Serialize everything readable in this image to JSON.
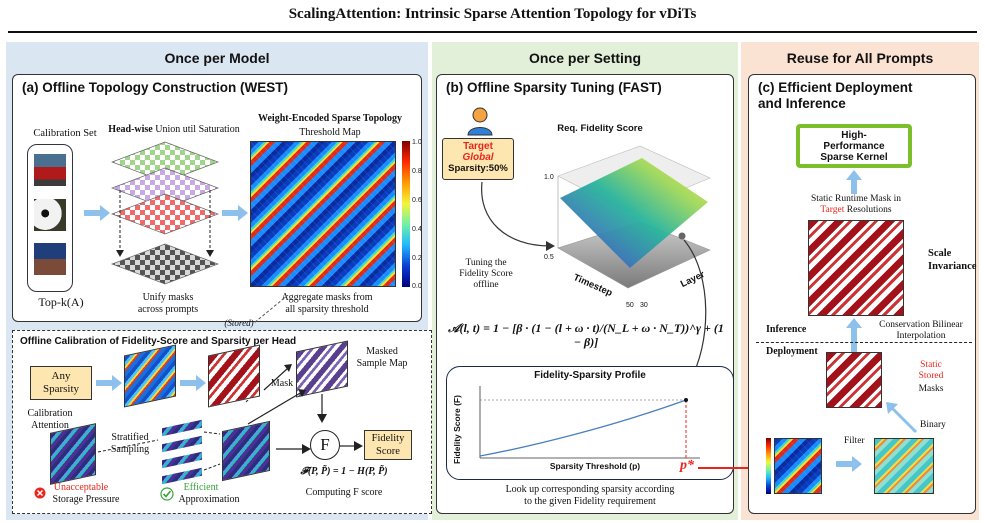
{
  "title": "ScalingAttention: Intrinsic Sparse Attention Topology for vDiTs",
  "stages": {
    "model": "Once per Model",
    "setting": "Once per Setting",
    "prompts": "Reuse for All Prompts"
  },
  "panel_a": {
    "heading": "(a) Offline Topology Construction (WEST)",
    "calibration_set": "Calibration Set",
    "headwise_bold": "Head-wise",
    "headwise_rest": " Union util Saturation",
    "topk": "Top-k(A)",
    "unify": "Unify masks\nacross prompts",
    "topology_title": "Weight-Encoded Sparse Topology",
    "threshold_map": "Threshold Map",
    "aggregate": "Aggregate masks from\nall sparsity threshold",
    "stored": "(Stored)",
    "colorbar_ticks": [
      "1.0",
      "0.8",
      "0.6",
      "0.4",
      "0.2",
      "0.0"
    ]
  },
  "calibration": {
    "heading": "Offline Calibration of Fidelity-Score and Sparsity per Head",
    "any_sparsity": "Any\nSparsity",
    "masked_sample": "Masked\nSample Map",
    "mask_label": "Mask",
    "calibration_attention": "Calibration\nAttention",
    "stratified": "Stratified\nSampling",
    "f_symbol": "F",
    "fidelity_score": "Fidelity\nScore",
    "formula_f": "𝓕(P, P̃) = 1 − H(P, P̃)",
    "computing": "Computing F score",
    "unacceptable": "Unacceptable",
    "storage_pressure": "Storage Pressure",
    "efficient": "Efficient",
    "approximation": "Approximation"
  },
  "panel_b": {
    "heading": "(b) Offline Sparsity Tuning (FAST)",
    "target_line1": "Target",
    "target_line2": "Global",
    "target_line3": "Sparsity:50%",
    "req_fidelity": "Req. Fidelity Score",
    "tuning": "Tuning the\nFidelity Score\noffline",
    "axis_timestep": "Timestep",
    "axis_layer": "Layer",
    "tick_10": "1.0",
    "tick_05": "0.5",
    "tick_50": "50",
    "tick_30": "30",
    "formula": "𝒜(l, t) = 1 − [β · (1 − (l + ω · t)/(N_L + ω · N_T))^γ + (1 − β)]",
    "profile_title": "Fidelity-Sparsity Profile",
    "profile_ylabel": "Fidelity Score (F)",
    "profile_xlabel": "Sparsity Threshold (p)",
    "p_star": "p*",
    "lookup": "Look up corresponding sparsity according\nto the given Fidelity requirement"
  },
  "panel_c": {
    "heading": "(c) Efficient Deployment\nand Inference",
    "kernel": "High-\nPerformance\nSparse Kernel",
    "static_runtime_1": "Static Runtime Mask in",
    "static_runtime_target": "Target",
    "static_runtime_2": " Resolutions",
    "scale_invariance": "Scale\nInvariance",
    "inference": "Inference",
    "deployment": "Deployment",
    "conservation": "Conservation Bilinear\nInterpolation",
    "static_stored_red": "Static\nStored",
    "masks": "Masks",
    "binary": "Binary",
    "filter": "Filter"
  },
  "colors": {
    "panel_a_bg": "#dbe6f3",
    "panel_b_bg": "#e2efd9",
    "panel_c_bg": "#fbe3d4",
    "accent_red": "#e8261b",
    "accent_green": "#7bbf2a",
    "arrow_blue": "#8ec0ec",
    "target_box": "#fde6b0"
  }
}
